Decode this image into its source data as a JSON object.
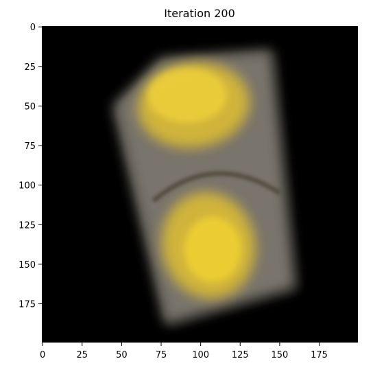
{
  "chart_data": {
    "type": "heatmap",
    "title": "Iteration 200",
    "xlabel": "",
    "ylabel": "",
    "image_extent": {
      "x": [
        0,
        199
      ],
      "y": [
        0,
        199
      ]
    },
    "y_inverted": true,
    "x_ticks": [
      0,
      25,
      50,
      75,
      100,
      125,
      150,
      175
    ],
    "y_ticks": [
      0,
      25,
      50,
      75,
      100,
      125,
      150,
      175
    ],
    "grid": false,
    "legend": "none",
    "background_color": "#000000",
    "content": {
      "description_visual": "blurry rotated rectangular object",
      "object_corners": [
        [
          75,
          20
        ],
        [
          145,
          15
        ],
        [
          160,
          165
        ],
        [
          78,
          188
        ],
        [
          45,
          50
        ]
      ],
      "upper_blob_center": [
        95,
        45
      ],
      "lower_blob_center": [
        105,
        138
      ],
      "colors": {
        "yellow": "#e0bf32",
        "gray": "#b9b2a4",
        "dark": "#2a2a2a"
      }
    }
  }
}
